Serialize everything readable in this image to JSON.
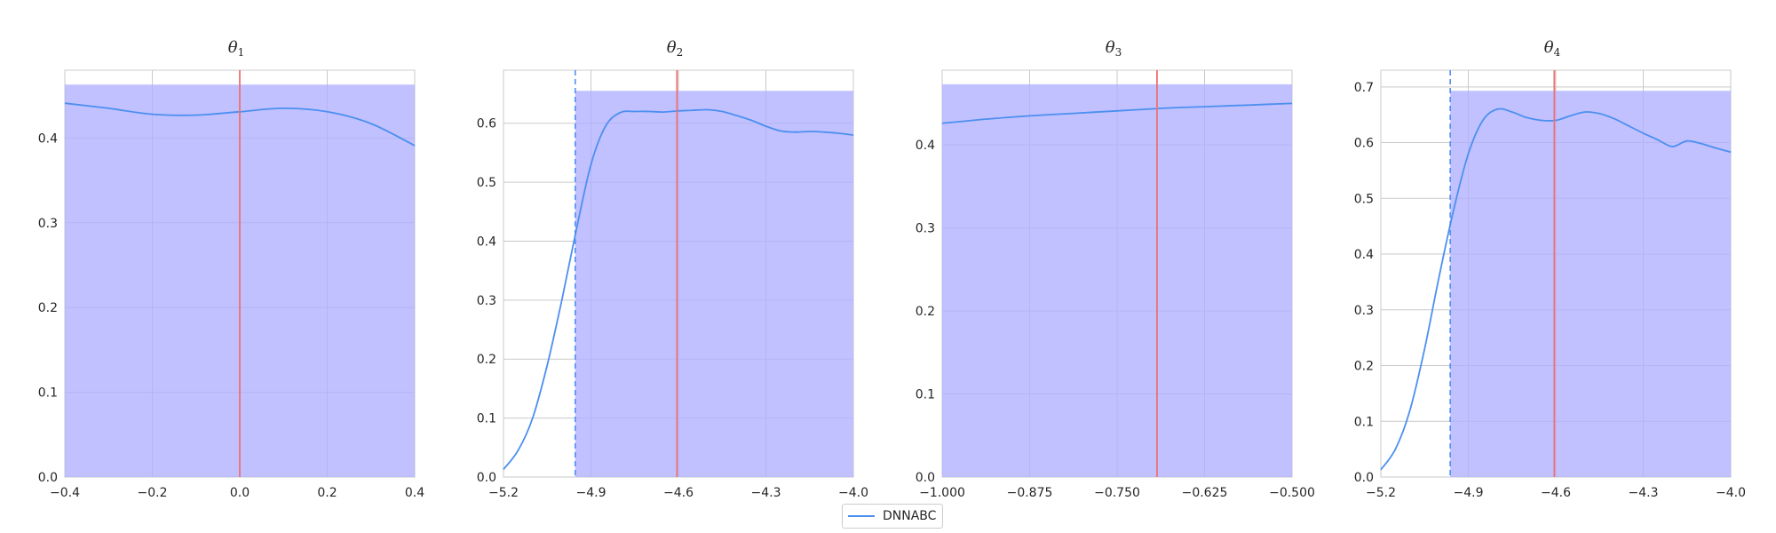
{
  "legend": {
    "label": "DNNABC",
    "color": "#4c8ff0"
  },
  "colors": {
    "fill": "#b0b0ff",
    "grid": "#c9c9c9",
    "truth": "#f07070",
    "dashed": "#4c8ff0",
    "curve": "#4c8ff0",
    "spine": "#cccccc"
  },
  "chart_data": [
    {
      "type": "line",
      "title": "θ",
      "title_sub": "1",
      "xlim": [
        -0.4,
        0.4
      ],
      "ylim": [
        0,
        0.48
      ],
      "xticks": [
        -0.4,
        -0.2,
        0.0,
        0.2,
        0.4
      ],
      "xtick_labels": [
        "−0.4",
        "−0.2",
        "0.0",
        "0.2",
        "0.4"
      ],
      "yticks": [
        0,
        0.1,
        0.2,
        0.3,
        0.4
      ],
      "ytick_labels": [
        "0.0",
        "0.1",
        "0.2",
        "0.3",
        "0.4"
      ],
      "band": {
        "x_from": -0.4,
        "x_to": 0.4,
        "height": 0.463
      },
      "true_value": 0.0,
      "dashed_line": null,
      "series": [
        {
          "name": "DNNABC",
          "x": [
            -0.4,
            -0.3,
            -0.2,
            -0.1,
            0.0,
            0.1,
            0.2,
            0.3,
            0.4
          ],
          "y": [
            0.441,
            0.435,
            0.428,
            0.427,
            0.431,
            0.435,
            0.431,
            0.417,
            0.391
          ]
        }
      ]
    },
    {
      "type": "line",
      "title": "θ",
      "title_sub": "2",
      "xlim": [
        -5.2,
        -4.0
      ],
      "ylim": [
        0,
        0.69
      ],
      "xticks": [
        -5.2,
        -4.9,
        -4.6,
        -4.3,
        -4.0
      ],
      "xtick_labels": [
        "−5.2",
        "−4.9",
        "−4.6",
        "−4.3",
        "−4.0"
      ],
      "yticks": [
        0,
        0.1,
        0.2,
        0.3,
        0.4,
        0.5,
        0.6
      ],
      "ytick_labels": [
        "0.0",
        "0.1",
        "0.2",
        "0.3",
        "0.4",
        "0.5",
        "0.6"
      ],
      "band": {
        "x_from": -4.954,
        "x_to": -4.0,
        "height": 0.655
      },
      "true_value": -4.605,
      "dashed_line": -4.954,
      "series": [
        {
          "name": "DNNABC",
          "x": [
            -5.2,
            -5.15,
            -5.1,
            -5.05,
            -5.0,
            -4.95,
            -4.9,
            -4.85,
            -4.8,
            -4.75,
            -4.7,
            -4.65,
            -4.6,
            -4.55,
            -4.5,
            -4.45,
            -4.4,
            -4.35,
            -4.3,
            -4.25,
            -4.2,
            -4.15,
            -4.1,
            -4.05,
            -4.0
          ],
          "y": [
            0.013,
            0.045,
            0.1,
            0.19,
            0.3,
            0.42,
            0.53,
            0.595,
            0.618,
            0.62,
            0.62,
            0.619,
            0.621,
            0.622,
            0.623,
            0.62,
            0.613,
            0.605,
            0.595,
            0.587,
            0.585,
            0.586,
            0.585,
            0.583,
            0.58
          ]
        }
      ]
    },
    {
      "type": "line",
      "title": "θ",
      "title_sub": "3",
      "xlim": [
        -1.0,
        -0.5
      ],
      "ylim": [
        0,
        0.49
      ],
      "xticks": [
        -1.0,
        -0.875,
        -0.75,
        -0.625,
        -0.5
      ],
      "xtick_labels": [
        "−1.000",
        "−0.875",
        "−0.750",
        "−0.625",
        "−0.500"
      ],
      "yticks": [
        0,
        0.1,
        0.2,
        0.3,
        0.4
      ],
      "ytick_labels": [
        "0.0",
        "0.1",
        "0.2",
        "0.3",
        "0.4"
      ],
      "band": {
        "x_from": -1.0,
        "x_to": -0.5,
        "height": 0.473
      },
      "true_value": -0.693,
      "dashed_line": null,
      "series": [
        {
          "name": "DNNABC",
          "x": [
            -1.0,
            -0.9375,
            -0.875,
            -0.8125,
            -0.75,
            -0.6875,
            -0.625,
            -0.5625,
            -0.5
          ],
          "y": [
            0.426,
            0.431,
            0.435,
            0.438,
            0.441,
            0.444,
            0.446,
            0.448,
            0.45
          ]
        }
      ]
    },
    {
      "type": "line",
      "title": "θ",
      "title_sub": "4",
      "xlim": [
        -5.2,
        -4.0
      ],
      "ylim": [
        0,
        0.73
      ],
      "xticks": [
        -5.2,
        -4.9,
        -4.6,
        -4.3,
        -4.0
      ],
      "xtick_labels": [
        "−5.2",
        "−4.9",
        "−4.6",
        "−4.3",
        "−4.0"
      ],
      "yticks": [
        0,
        0.1,
        0.2,
        0.3,
        0.4,
        0.5,
        0.6,
        0.7
      ],
      "ytick_labels": [
        "0.0",
        "0.1",
        "0.2",
        "0.3",
        "0.4",
        "0.5",
        "0.6",
        "0.7"
      ],
      "band": {
        "x_from": -4.962,
        "x_to": -4.0,
        "height": 0.693
      },
      "true_value": -4.605,
      "dashed_line": -4.962,
      "series": [
        {
          "name": "DNNABC",
          "x": [
            -5.2,
            -5.15,
            -5.1,
            -5.05,
            -5.0,
            -4.95,
            -4.9,
            -4.85,
            -4.8,
            -4.75,
            -4.7,
            -4.65,
            -4.6,
            -4.55,
            -4.5,
            -4.45,
            -4.4,
            -4.35,
            -4.3,
            -4.25,
            -4.2,
            -4.15,
            -4.1,
            -4.05,
            -4.0
          ],
          "y": [
            0.013,
            0.05,
            0.12,
            0.23,
            0.36,
            0.48,
            0.58,
            0.64,
            0.66,
            0.655,
            0.645,
            0.64,
            0.64,
            0.648,
            0.655,
            0.652,
            0.643,
            0.63,
            0.617,
            0.605,
            0.593,
            0.603,
            0.598,
            0.59,
            0.583
          ]
        }
      ]
    }
  ]
}
